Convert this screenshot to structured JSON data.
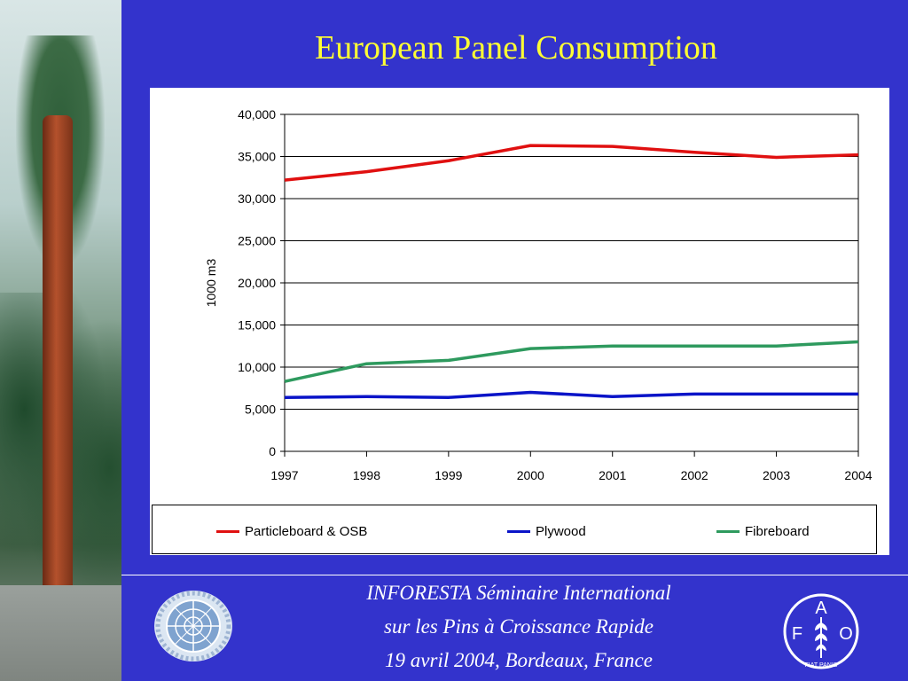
{
  "slide": {
    "title": "European Panel Consumption",
    "footer_lines": [
      "INFORESTA Séminaire International",
      "sur les Pins à Croissance Rapide",
      "19 avril 2004, Bordeaux, France"
    ],
    "fao_logo_text": {
      "letters": [
        "F",
        "A",
        "O"
      ],
      "motto": "FIAT PANIS"
    },
    "colors": {
      "background": "#3333cc",
      "title": "#ffff33",
      "footer_text": "#ffffff"
    }
  },
  "chart_data": {
    "type": "line",
    "title": "",
    "xlabel": "",
    "ylabel": "1000 m3",
    "x": [
      1997,
      1998,
      1999,
      2000,
      2001,
      2002,
      2003,
      2004
    ],
    "ylim": [
      0,
      40000
    ],
    "yticks": [
      0,
      5000,
      10000,
      15000,
      20000,
      25000,
      30000,
      35000,
      40000
    ],
    "ytick_labels": [
      "0",
      "5,000",
      "10,000",
      "15,000",
      "20,000",
      "25,000",
      "30,000",
      "35,000",
      "40,000"
    ],
    "grid": "horizontal",
    "legend_position": "bottom",
    "series": [
      {
        "name": "Particleboard & OSB",
        "color": "#e01010",
        "values": [
          32200,
          33200,
          34500,
          36300,
          36200,
          35500,
          34900,
          35200
        ]
      },
      {
        "name": "Plywood",
        "color": "#0a14c8",
        "values": [
          6400,
          6500,
          6400,
          7000,
          6500,
          6800,
          6800,
          6800
        ]
      },
      {
        "name": "Fibreboard",
        "color": "#2e9a5e",
        "values": [
          8300,
          10400,
          10800,
          12200,
          12500,
          12500,
          12500,
          13000
        ]
      }
    ]
  }
}
